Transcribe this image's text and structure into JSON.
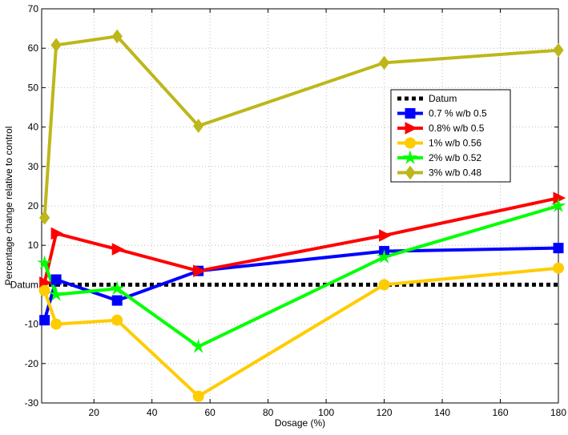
{
  "chart_data": {
    "type": "line",
    "xlabel": "Dosage (%)",
    "ylabel": "Percentage change relative to control",
    "xlim": [
      2,
      180
    ],
    "ylim": [
      -30,
      70
    ],
    "xticks": [
      20,
      40,
      60,
      80,
      100,
      120,
      140,
      160,
      180
    ],
    "yticks": [
      -30,
      -20,
      -10,
      10,
      20,
      30,
      40,
      50,
      60,
      70
    ],
    "grid": true,
    "legend_position": "upper-right",
    "annotation": {
      "text": "Datum",
      "y": 0
    },
    "series": [
      {
        "name": "Datum",
        "style": "dotted",
        "marker": "none",
        "color": "#000000",
        "x": [
          2,
          180
        ],
        "y": [
          0,
          0
        ]
      },
      {
        "name": "0.7 % w/b 0.5",
        "marker": "square",
        "color": "#0000ff",
        "x": [
          3,
          7,
          28,
          56,
          120,
          180
        ],
        "y": [
          -9,
          1.3,
          -4,
          3.5,
          8.5,
          9.3
        ]
      },
      {
        "name": "0.8% w/b 0.5",
        "marker": "triangle-right",
        "color": "#ff0000",
        "x": [
          3,
          7,
          28,
          56,
          120,
          180
        ],
        "y": [
          0.5,
          13,
          9,
          3.5,
          12.5,
          22
        ]
      },
      {
        "name": "1% w/b 0.56",
        "marker": "circle",
        "color": "#ffcc00",
        "x": [
          3,
          7,
          28,
          56,
          120,
          180
        ],
        "y": [
          -1.5,
          -10,
          -9,
          -28.3,
          0,
          4.2
        ]
      },
      {
        "name": "2% w/b 0.52",
        "marker": "star",
        "color": "#00ff00",
        "x": [
          3,
          7,
          28,
          56,
          120,
          180
        ],
        "y": [
          5.5,
          -2.5,
          -1,
          -15.7,
          7,
          20
        ]
      },
      {
        "name": "3% w/b 0.48",
        "marker": "diamond",
        "color": "#bdb71a",
        "x": [
          3,
          7,
          28,
          56,
          120,
          180
        ],
        "y": [
          17,
          60.8,
          63,
          40.3,
          56.3,
          59.5
        ]
      }
    ]
  }
}
